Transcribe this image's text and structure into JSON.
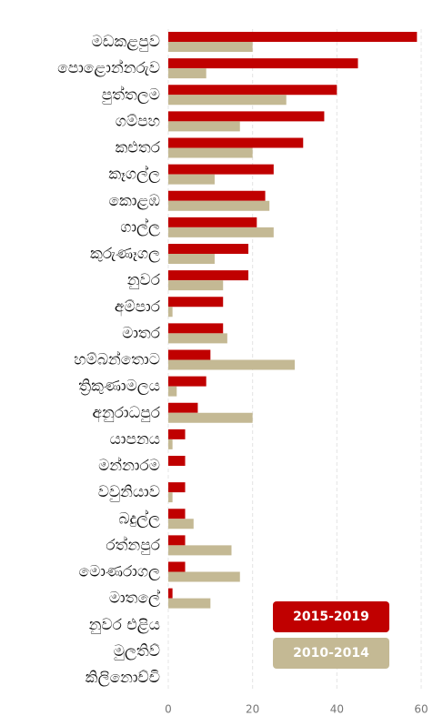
{
  "chart_data": {
    "type": "bar",
    "orientation": "horizontal",
    "categories": [
      "මඩකළපුව",
      "පොළොන්නරුව",
      "පුත්තලම",
      "ගම්පහ",
      "කළුතර",
      "කෑගල්ල",
      "කොළඹ",
      "ගාල්ල",
      "කුරුණෑගල",
      "නුවර",
      "අම්පාර",
      "මාතර",
      "හම්බන්තොට",
      "ත්‍රිකුණාමලය",
      "අනුරාධපුර",
      "යාපනය",
      "මන්නාරම",
      "වවුනියාව",
      "බදුල්ල",
      "රත්නපුර",
      "මොණරාගල",
      "මාතලේ",
      "නුවර එළිය",
      "මුලතිව්",
      "කිලිනොච්චි"
    ],
    "series": [
      {
        "name": "2015-2019",
        "color": "#c00000",
        "values": [
          59,
          45,
          40,
          37,
          32,
          25,
          23,
          21,
          19,
          19,
          13,
          13,
          10,
          9,
          7,
          4,
          4,
          4,
          4,
          4,
          4,
          1,
          0,
          0,
          0
        ]
      },
      {
        "name": "2010-2014",
        "color": "#c4b994",
        "values": [
          20,
          9,
          28,
          17,
          20,
          11,
          24,
          25,
          11,
          13,
          1,
          14,
          30,
          2,
          20,
          1,
          0,
          1,
          6,
          15,
          17,
          10,
          0,
          0,
          0
        ]
      }
    ],
    "xlim": [
      0,
      60
    ],
    "xticks": [
      0,
      20,
      40,
      60
    ],
    "grid": true,
    "legend": "lower right"
  }
}
